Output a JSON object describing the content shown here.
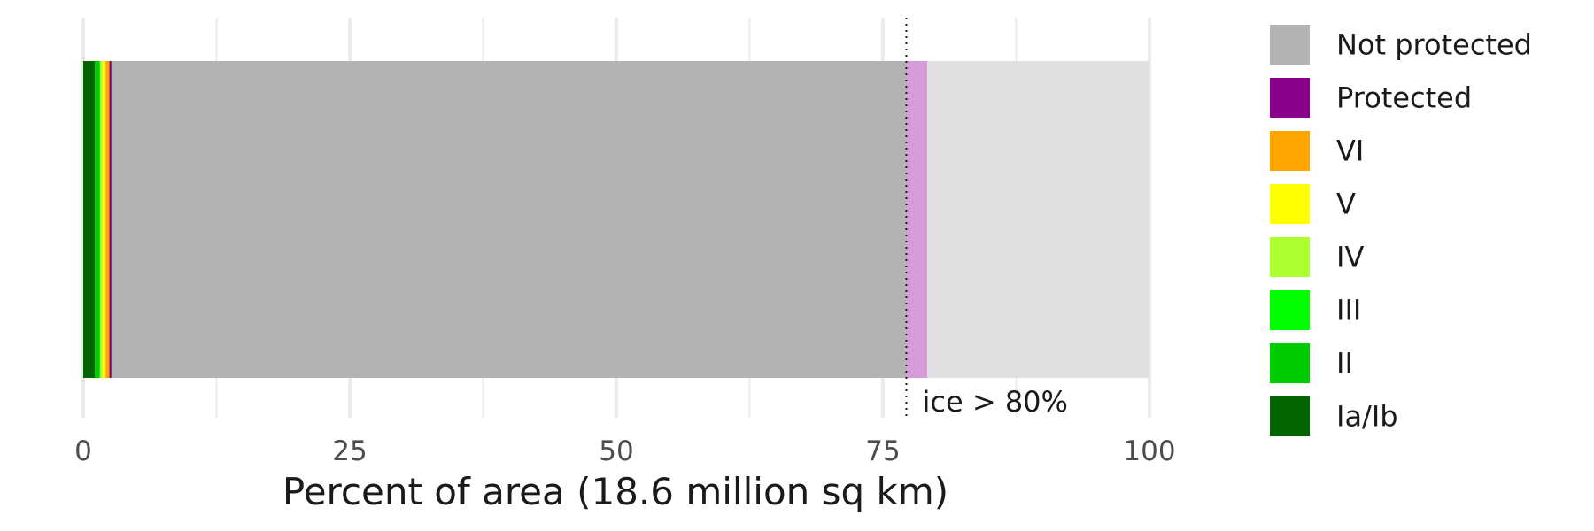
{
  "chart_data": {
    "type": "bar",
    "orientation": "horizontal",
    "stacked": true,
    "title": "",
    "xlabel": "Percent of area (18.6 million sq km)",
    "ylabel": "",
    "xlim": [
      0,
      100
    ],
    "x_ticks": [
      "0",
      "25",
      "50",
      "75",
      "100"
    ],
    "x_tick_values": [
      0,
      25,
      50,
      75,
      100
    ],
    "grid": true,
    "legend_position": "right",
    "segments": [
      {
        "name": "Ia/Ib",
        "value": 1.1,
        "color": "#006400"
      },
      {
        "name": "II",
        "value": 0.45,
        "color": "#00CD00"
      },
      {
        "name": "III",
        "value": 0.05,
        "color": "#00FF00"
      },
      {
        "name": "IV",
        "value": 0.2,
        "color": "#ADFF2F"
      },
      {
        "name": "V",
        "value": 0.3,
        "color": "#FFFF00"
      },
      {
        "name": "VI",
        "value": 0.35,
        "color": "#FFA500"
      },
      {
        "name": "Protected",
        "value": 0.2,
        "color": "#8B008B"
      },
      {
        "name": "Not protected",
        "value": 74.6,
        "color": "#B3B3B3"
      },
      {
        "name": "Protected (ice > 80%)",
        "value": 1.9,
        "color": "#D79BD7"
      },
      {
        "name": "Not protected (ice > 80%)",
        "value": 20.85,
        "color": "#E0E0E0"
      }
    ],
    "legend": [
      {
        "label": "Not protected",
        "color": "#B3B3B3"
      },
      {
        "label": "Protected",
        "color": "#8B008B"
      },
      {
        "label": "VI",
        "color": "#FFA500"
      },
      {
        "label": "V",
        "color": "#FFFF00"
      },
      {
        "label": "IV",
        "color": "#ADFF2F"
      },
      {
        "label": "III",
        "color": "#00FF00"
      },
      {
        "label": "II",
        "color": "#00CD00"
      },
      {
        "label": "Ia/Ib",
        "color": "#006400"
      }
    ],
    "reference_line": {
      "x": 77.2,
      "label": "ice > 80%",
      "style": "dotted"
    }
  }
}
